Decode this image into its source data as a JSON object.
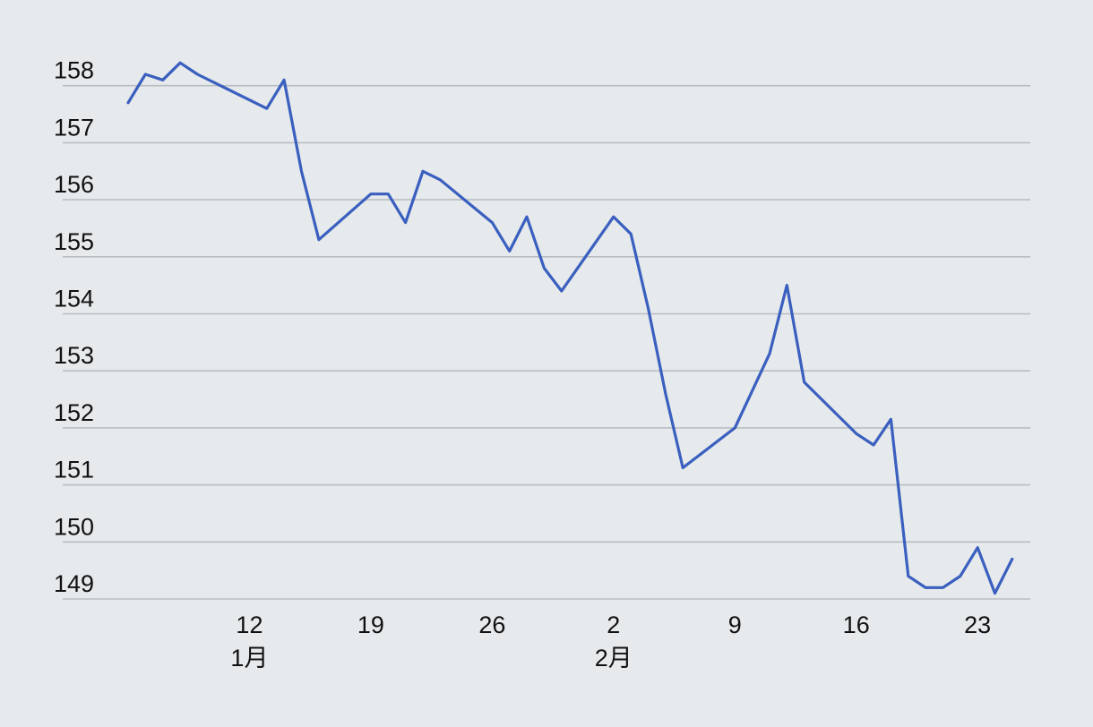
{
  "chart_data": {
    "type": "line",
    "title": "",
    "xlabel": "",
    "ylabel": "",
    "ylim": [
      149,
      158.3
    ],
    "y_ticks": [
      149,
      150,
      151,
      152,
      153,
      154,
      155,
      156,
      157,
      158
    ],
    "x_ticks": [
      {
        "date": "2024-01-12",
        "label": "12",
        "month_label": "1月"
      },
      {
        "date": "2024-01-19",
        "label": "19",
        "month_label": ""
      },
      {
        "date": "2024-01-26",
        "label": "26",
        "month_label": ""
      },
      {
        "date": "2024-02-02",
        "label": "2",
        "month_label": "2月"
      },
      {
        "date": "2024-02-09",
        "label": "9",
        "month_label": ""
      },
      {
        "date": "2024-02-16",
        "label": "16",
        "month_label": ""
      },
      {
        "date": "2024-02-23",
        "label": "23",
        "month_label": ""
      }
    ],
    "grid": true,
    "line_color": "#3a5fbf",
    "gridline_color": "#b9bec2",
    "series": [
      {
        "points": [
          {
            "x": "2024-01-05",
            "y": 157.7
          },
          {
            "x": "2024-01-06",
            "y": 158.2
          },
          {
            "x": "2024-01-07",
            "y": 158.1
          },
          {
            "x": "2024-01-08",
            "y": 158.4
          },
          {
            "x": "2024-01-09",
            "y": 158.2
          },
          {
            "x": "2024-01-13",
            "y": 157.6
          },
          {
            "x": "2024-01-14",
            "y": 158.1
          },
          {
            "x": "2024-01-15",
            "y": 156.5
          },
          {
            "x": "2024-01-16",
            "y": 155.3
          },
          {
            "x": "2024-01-19",
            "y": 156.1
          },
          {
            "x": "2024-01-20",
            "y": 156.1
          },
          {
            "x": "2024-01-21",
            "y": 155.6
          },
          {
            "x": "2024-01-22",
            "y": 156.5
          },
          {
            "x": "2024-01-23",
            "y": 156.35
          },
          {
            "x": "2024-01-26",
            "y": 155.6
          },
          {
            "x": "2024-01-27",
            "y": 155.1
          },
          {
            "x": "2024-01-28",
            "y": 155.7
          },
          {
            "x": "2024-01-29",
            "y": 154.8
          },
          {
            "x": "2024-01-30",
            "y": 154.4
          },
          {
            "x": "2024-02-02",
            "y": 155.7
          },
          {
            "x": "2024-02-03",
            "y": 155.4
          },
          {
            "x": "2024-02-04",
            "y": 154.1
          },
          {
            "x": "2024-02-05",
            "y": 152.6
          },
          {
            "x": "2024-02-06",
            "y": 151.3
          },
          {
            "x": "2024-02-09",
            "y": 152.0
          },
          {
            "x": "2024-02-11",
            "y": 153.3
          },
          {
            "x": "2024-02-12",
            "y": 154.5
          },
          {
            "x": "2024-02-13",
            "y": 152.8
          },
          {
            "x": "2024-02-16",
            "y": 151.9
          },
          {
            "x": "2024-02-17",
            "y": 151.7
          },
          {
            "x": "2024-02-18",
            "y": 152.15
          },
          {
            "x": "2024-02-19",
            "y": 149.4
          },
          {
            "x": "2024-02-20",
            "y": 149.2
          },
          {
            "x": "2024-02-21",
            "y": 149.2
          },
          {
            "x": "2024-02-22",
            "y": 149.4
          },
          {
            "x": "2024-02-23",
            "y": 149.9
          },
          {
            "x": "2024-02-24",
            "y": 149.1
          },
          {
            "x": "2024-02-25",
            "y": 149.7
          }
        ]
      }
    ]
  }
}
